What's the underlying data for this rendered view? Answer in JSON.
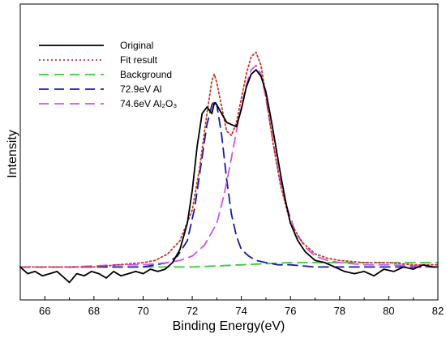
{
  "chart_data": {
    "type": "line",
    "xlabel": "Binding Energy(eV)",
    "ylabel": "Intensity",
    "xlim": [
      65,
      82
    ],
    "ylim": [
      -0.15,
      1.2
    ],
    "x_ticks": [
      "66",
      "68",
      "70",
      "72",
      "74",
      "76",
      "78",
      "80",
      "82"
    ],
    "legend_position": "top-left",
    "series": [
      {
        "name": "Original",
        "color": "#000000",
        "style": "solid",
        "x": [
          65.0,
          65.3,
          65.6,
          65.9,
          66.2,
          66.5,
          66.8,
          67.0,
          67.3,
          67.6,
          67.9,
          68.2,
          68.5,
          68.8,
          69.1,
          69.4,
          69.7,
          70.0,
          70.3,
          70.6,
          70.9,
          71.2,
          71.5,
          71.8,
          72.0,
          72.2,
          72.4,
          72.6,
          72.8,
          72.9,
          73.0,
          73.1,
          73.2,
          73.4,
          73.6,
          73.8,
          74.0,
          74.2,
          74.4,
          74.6,
          74.8,
          75.0,
          75.2,
          75.4,
          75.6,
          75.8,
          76.0,
          76.3,
          76.6,
          77.0,
          77.4,
          77.8,
          78.2,
          78.6,
          79.0,
          79.4,
          79.8,
          80.2,
          80.6,
          81.0,
          81.4,
          81.8,
          82.0
        ],
        "y": [
          0.0,
          -0.03,
          -0.02,
          -0.04,
          -0.03,
          -0.02,
          -0.05,
          -0.07,
          -0.03,
          -0.04,
          -0.02,
          -0.03,
          -0.05,
          -0.02,
          -0.04,
          -0.03,
          -0.02,
          -0.03,
          -0.01,
          -0.02,
          -0.01,
          0.02,
          0.08,
          0.2,
          0.35,
          0.55,
          0.7,
          0.73,
          0.7,
          0.75,
          0.74,
          0.72,
          0.7,
          0.66,
          0.65,
          0.64,
          0.72,
          0.82,
          0.88,
          0.9,
          0.87,
          0.8,
          0.68,
          0.55,
          0.42,
          0.3,
          0.2,
          0.12,
          0.07,
          0.03,
          0.02,
          0.0,
          -0.02,
          -0.03,
          -0.02,
          -0.04,
          -0.01,
          -0.02,
          0.0,
          -0.01,
          0.01,
          0.0,
          0.0
        ]
      },
      {
        "name": "Fit result",
        "color": "#c0392b",
        "style": "dotted",
        "x": [
          65.0,
          66.0,
          67.0,
          68.0,
          69.0,
          70.0,
          70.5,
          71.0,
          71.5,
          72.0,
          72.3,
          72.6,
          72.8,
          72.9,
          73.0,
          73.2,
          73.4,
          73.6,
          73.8,
          74.0,
          74.2,
          74.4,
          74.6,
          74.8,
          75.0,
          75.3,
          75.6,
          76.0,
          76.5,
          77.0,
          77.5,
          78.0,
          79.0,
          80.0,
          81.0,
          82.0
        ],
        "y": [
          0.0,
          0.0,
          0.0,
          0.0,
          0.01,
          0.02,
          0.03,
          0.06,
          0.12,
          0.26,
          0.45,
          0.7,
          0.85,
          0.88,
          0.84,
          0.73,
          0.62,
          0.6,
          0.66,
          0.77,
          0.88,
          0.96,
          0.98,
          0.92,
          0.78,
          0.56,
          0.37,
          0.2,
          0.11,
          0.06,
          0.04,
          0.03,
          0.02,
          0.02,
          0.01,
          0.01
        ]
      },
      {
        "name": "Background",
        "color": "#33cc33",
        "style": "dashed",
        "x": [
          65.0,
          70.0,
          72.0,
          74.0,
          76.0,
          78.0,
          80.0,
          82.0
        ],
        "y": [
          0.0,
          0.0,
          0.0,
          0.01,
          0.02,
          0.02,
          0.02,
          0.02
        ]
      },
      {
        "name": "72.9eV Al",
        "color": "#1a1aa6",
        "style": "dashed",
        "x": [
          65.0,
          67.0,
          69.0,
          70.0,
          70.5,
          71.0,
          71.4,
          71.8,
          72.1,
          72.4,
          72.6,
          72.8,
          72.9,
          73.0,
          73.2,
          73.4,
          73.6,
          73.8,
          74.0,
          74.3,
          74.6,
          75.0,
          75.5,
          76.0,
          77.0,
          78.0,
          80.0,
          82.0
        ],
        "y": [
          0.0,
          0.0,
          0.0,
          0.0,
          0.01,
          0.02,
          0.05,
          0.12,
          0.27,
          0.5,
          0.65,
          0.74,
          0.76,
          0.74,
          0.6,
          0.4,
          0.24,
          0.14,
          0.08,
          0.05,
          0.03,
          0.02,
          0.01,
          0.01,
          0.0,
          0.0,
          0.0,
          0.0
        ]
      },
      {
        "name": "74.6eV Al₂O₃",
        "color": "#cc55ee",
        "style": "dashed",
        "x": [
          65.0,
          67.0,
          69.0,
          70.0,
          71.0,
          71.5,
          72.0,
          72.5,
          73.0,
          73.3,
          73.6,
          73.9,
          74.2,
          74.4,
          74.6,
          74.8,
          75.0,
          75.2,
          75.5,
          75.8,
          76.2,
          76.6,
          77.0,
          77.5,
          78.0,
          79.0,
          80.0,
          82.0
        ],
        "y": [
          0.0,
          0.0,
          0.01,
          0.01,
          0.02,
          0.03,
          0.05,
          0.1,
          0.2,
          0.33,
          0.5,
          0.68,
          0.83,
          0.9,
          0.92,
          0.88,
          0.77,
          0.63,
          0.44,
          0.29,
          0.16,
          0.09,
          0.05,
          0.03,
          0.02,
          0.01,
          0.01,
          0.0
        ]
      }
    ]
  }
}
